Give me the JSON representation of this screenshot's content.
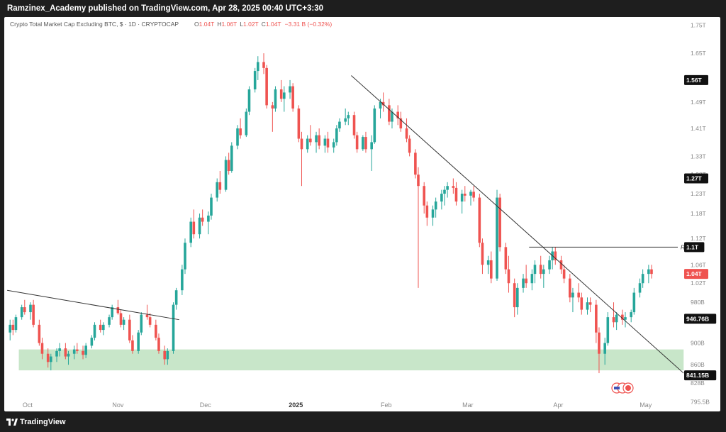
{
  "header": {
    "text": "Ramzinex_Academy published on TradingView.com, Apr 28, 2025 00:40 UTC+3:30"
  },
  "legend": {
    "symbol": "Crypto Total Market Cap Excluding BTC, $ · 1D · CRYPTOCAP",
    "o_label": "O",
    "o_value": "1.04T",
    "h_label": "H",
    "h_value": "1.06T",
    "l_label": "L",
    "l_value": "1.02T",
    "c_label": "C",
    "c_value": "1.04T",
    "change": "−3.31 B (−0.32%)"
  },
  "footer": {
    "brand": "TradingView",
    "logo_icon": "tradingview-logo-icon"
  },
  "colors": {
    "up": "#26a69a",
    "down": "#ef5350",
    "zone": "#c8e6c9",
    "line": "#333333"
  },
  "chart_data": {
    "type": "candlestick",
    "y_scale": "log",
    "ylim": [
      780000000000,
      1780000000000
    ],
    "xlim": [
      "2024-09-23",
      "2025-05-12"
    ],
    "y_ticks": [
      "1.75T",
      "1.65T",
      "1.49T",
      "1.41T",
      "1.33T",
      "1.28T",
      "1.23T",
      "1.18T",
      "1.12T",
      "1.06T",
      "1.02T",
      "980B",
      "900B",
      "860B",
      "828B",
      "795.5B"
    ],
    "y_tick_values": [
      1750,
      1650,
      1490,
      1410,
      1330,
      1280,
      1230,
      1180,
      1120,
      1060,
      1020,
      980,
      900,
      860,
      828,
      795.5
    ],
    "x_ticks": [
      {
        "label": "Oct",
        "date": "2024-10-01"
      },
      {
        "label": "Nov",
        "date": "2024-11-01"
      },
      {
        "label": "Dec",
        "date": "2024-12-01"
      },
      {
        "label": "2025",
        "date": "2025-01-01"
      },
      {
        "label": "Feb",
        "date": "2025-02-01"
      },
      {
        "label": "Mar",
        "date": "2025-03-01"
      },
      {
        "label": "Apr",
        "date": "2025-04-01"
      },
      {
        "label": "May",
        "date": "2025-05-01"
      }
    ],
    "price_labels": [
      {
        "text": "1.56T",
        "value": 1560,
        "style": "dark"
      },
      {
        "text": "1.27T",
        "value": 1270,
        "style": "dark"
      },
      {
        "text": "1.1T",
        "value": 1100,
        "style": "dark"
      },
      {
        "text": "1.04T",
        "value": 1040,
        "style": "red"
      },
      {
        "text": "946.76B",
        "value": 946.76,
        "style": "dark"
      },
      {
        "text": "841.15B",
        "value": 841.15,
        "style": "dark"
      }
    ],
    "support_zone": {
      "low": 850,
      "high": 888,
      "from": "2024-09-28",
      "to": "2025-05-14"
    },
    "trendlines": [
      {
        "from": {
          "date": "2024-09-24",
          "value": 1005
        },
        "to": {
          "date": "2024-11-22",
          "value": 945
        }
      },
      {
        "from": {
          "date": "2025-01-20",
          "value": 1575
        },
        "to": {
          "date": "2025-05-14",
          "value": 845
        }
      }
    ],
    "resistance": {
      "label": "R",
      "value": 1100,
      "from": "2025-03-22",
      "to": "2025-05-12"
    },
    "candles_start": "2024-09-25",
    "candles": [
      [
        920,
        945,
        905,
        935
      ],
      [
        935,
        945,
        915,
        925
      ],
      [
        925,
        955,
        920,
        950
      ],
      [
        950,
        975,
        945,
        970
      ],
      [
        970,
        985,
        955,
        960
      ],
      [
        960,
        980,
        945,
        975
      ],
      [
        975,
        985,
        930,
        935
      ],
      [
        935,
        945,
        895,
        900
      ],
      [
        900,
        910,
        870,
        880
      ],
      [
        880,
        890,
        855,
        865
      ],
      [
        865,
        880,
        850,
        875
      ],
      [
        875,
        890,
        865,
        885
      ],
      [
        885,
        900,
        875,
        890
      ],
      [
        890,
        900,
        870,
        875
      ],
      [
        875,
        885,
        860,
        880
      ],
      [
        880,
        895,
        870,
        888
      ],
      [
        888,
        900,
        880,
        885
      ],
      [
        885,
        895,
        870,
        878
      ],
      [
        878,
        900,
        872,
        895
      ],
      [
        895,
        915,
        890,
        910
      ],
      [
        910,
        940,
        905,
        935
      ],
      [
        935,
        945,
        920,
        925
      ],
      [
        925,
        940,
        915,
        935
      ],
      [
        935,
        955,
        930,
        950
      ],
      [
        950,
        975,
        945,
        970
      ],
      [
        970,
        985,
        955,
        958
      ],
      [
        958,
        965,
        930,
        935
      ],
      [
        935,
        950,
        925,
        945
      ],
      [
        945,
        955,
        900,
        905
      ],
      [
        905,
        915,
        880,
        885
      ],
      [
        885,
        925,
        880,
        920
      ],
      [
        920,
        960,
        915,
        955
      ],
      [
        955,
        975,
        945,
        950
      ],
      [
        950,
        958,
        930,
        935
      ],
      [
        935,
        945,
        905,
        910
      ],
      [
        910,
        918,
        880,
        885
      ],
      [
        885,
        895,
        860,
        870
      ],
      [
        870,
        890,
        860,
        885
      ],
      [
        885,
        980,
        880,
        975
      ],
      [
        975,
        1010,
        965,
        1005
      ],
      [
        1005,
        1060,
        995,
        1050
      ],
      [
        1050,
        1120,
        1040,
        1110
      ],
      [
        1110,
        1170,
        1100,
        1160
      ],
      [
        1160,
        1190,
        1120,
        1130
      ],
      [
        1130,
        1180,
        1120,
        1170
      ],
      [
        1170,
        1190,
        1150,
        1160
      ],
      [
        1160,
        1185,
        1130,
        1175
      ],
      [
        1175,
        1230,
        1165,
        1220
      ],
      [
        1220,
        1270,
        1210,
        1260
      ],
      [
        1260,
        1290,
        1230,
        1240
      ],
      [
        1240,
        1330,
        1235,
        1320
      ],
      [
        1320,
        1340,
        1280,
        1290
      ],
      [
        1290,
        1370,
        1285,
        1360
      ],
      [
        1360,
        1420,
        1350,
        1410
      ],
      [
        1410,
        1440,
        1380,
        1390
      ],
      [
        1390,
        1470,
        1385,
        1460
      ],
      [
        1460,
        1540,
        1450,
        1530
      ],
      [
        1530,
        1600,
        1520,
        1590
      ],
      [
        1590,
        1640,
        1560,
        1620
      ],
      [
        1620,
        1650,
        1580,
        1600
      ],
      [
        1600,
        1610,
        1470,
        1480
      ],
      [
        1480,
        1490,
        1400,
        1470
      ],
      [
        1470,
        1540,
        1460,
        1530
      ],
      [
        1530,
        1560,
        1490,
        1500
      ],
      [
        1500,
        1540,
        1460,
        1520
      ],
      [
        1520,
        1560,
        1500,
        1540
      ],
      [
        1540,
        1550,
        1460,
        1470
      ],
      [
        1470,
        1480,
        1370,
        1380
      ],
      [
        1380,
        1400,
        1250,
        1350
      ],
      [
        1350,
        1390,
        1340,
        1380
      ],
      [
        1380,
        1420,
        1360,
        1370
      ],
      [
        1370,
        1400,
        1340,
        1390
      ],
      [
        1390,
        1410,
        1350,
        1360
      ],
      [
        1360,
        1390,
        1340,
        1380
      ],
      [
        1380,
        1400,
        1340,
        1355
      ],
      [
        1355,
        1380,
        1340,
        1370
      ],
      [
        1370,
        1420,
        1360,
        1410
      ],
      [
        1410,
        1440,
        1400,
        1430
      ],
      [
        1430,
        1470,
        1420,
        1440
      ],
      [
        1440,
        1460,
        1420,
        1450
      ],
      [
        1450,
        1460,
        1380,
        1390
      ],
      [
        1390,
        1400,
        1340,
        1350
      ],
      [
        1350,
        1390,
        1345,
        1385
      ],
      [
        1385,
        1400,
        1340,
        1350
      ],
      [
        1350,
        1390,
        1290,
        1370
      ],
      [
        1370,
        1480,
        1365,
        1470
      ],
      [
        1470,
        1500,
        1440,
        1490
      ],
      [
        1490,
        1520,
        1460,
        1480
      ],
      [
        1480,
        1500,
        1420,
        1430
      ],
      [
        1430,
        1470,
        1410,
        1460
      ],
      [
        1460,
        1480,
        1420,
        1440
      ],
      [
        1440,
        1460,
        1400,
        1410
      ],
      [
        1410,
        1440,
        1370,
        1380
      ],
      [
        1380,
        1390,
        1330,
        1340
      ],
      [
        1340,
        1350,
        1270,
        1280
      ],
      [
        1280,
        1300,
        1010,
        1250
      ],
      [
        1250,
        1260,
        1180,
        1200
      ],
      [
        1200,
        1210,
        1150,
        1170
      ],
      [
        1170,
        1200,
        1150,
        1190
      ],
      [
        1190,
        1220,
        1170,
        1210
      ],
      [
        1210,
        1240,
        1190,
        1230
      ],
      [
        1230,
        1250,
        1200,
        1240
      ],
      [
        1240,
        1260,
        1220,
        1250
      ],
      [
        1250,
        1270,
        1230,
        1245
      ],
      [
        1245,
        1260,
        1200,
        1210
      ],
      [
        1210,
        1240,
        1180,
        1230
      ],
      [
        1230,
        1250,
        1210,
        1225
      ],
      [
        1225,
        1240,
        1200,
        1235
      ],
      [
        1235,
        1250,
        1210,
        1220
      ],
      [
        1220,
        1230,
        1100,
        1110
      ],
      [
        1110,
        1120,
        1040,
        1060
      ],
      [
        1060,
        1080,
        1040,
        1070
      ],
      [
        1070,
        1090,
        1020,
        1030
      ],
      [
        1030,
        1240,
        1025,
        1220
      ],
      [
        1220,
        1230,
        1090,
        1100
      ],
      [
        1100,
        1110,
        1040,
        1050
      ],
      [
        1050,
        1080,
        1000,
        1020
      ],
      [
        1020,
        1030,
        950,
        970
      ],
      [
        970,
        1020,
        955,
        1010
      ],
      [
        1010,
        1040,
        1000,
        1030
      ],
      [
        1030,
        1060,
        1010,
        1020
      ],
      [
        1020,
        1050,
        1005,
        1040
      ],
      [
        1040,
        1070,
        1020,
        1060
      ],
      [
        1060,
        1080,
        1030,
        1040
      ],
      [
        1040,
        1060,
        1010,
        1050
      ],
      [
        1050,
        1080,
        1040,
        1070
      ],
      [
        1070,
        1100,
        1050,
        1090
      ],
      [
        1090,
        1100,
        1060,
        1070
      ],
      [
        1070,
        1080,
        1040,
        1050
      ],
      [
        1050,
        1060,
        1020,
        1030
      ],
      [
        1030,
        1040,
        980,
        990
      ],
      [
        990,
        1010,
        960,
        1000
      ],
      [
        1000,
        1020,
        980,
        990
      ],
      [
        990,
        1000,
        955,
        965
      ],
      [
        965,
        990,
        955,
        980
      ],
      [
        980,
        990,
        960,
        975
      ],
      [
        975,
        985,
        900,
        920
      ],
      [
        920,
        930,
        845,
        880
      ],
      [
        880,
        910,
        860,
        900
      ],
      [
        900,
        960,
        895,
        950
      ],
      [
        950,
        980,
        930,
        940
      ],
      [
        940,
        960,
        925,
        955
      ],
      [
        955,
        965,
        935,
        945
      ],
      [
        945,
        960,
        930,
        950
      ],
      [
        950,
        965,
        940,
        960
      ],
      [
        960,
        1010,
        955,
        1000
      ],
      [
        1000,
        1030,
        990,
        1020
      ],
      [
        1020,
        1050,
        1010,
        1040
      ],
      [
        1040,
        1060,
        1020,
        1050
      ],
      [
        1050,
        1060,
        1030,
        1040
      ]
    ]
  }
}
